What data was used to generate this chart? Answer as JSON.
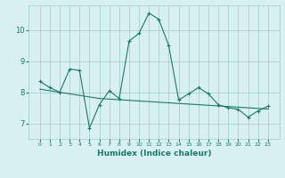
{
  "x": [
    0,
    1,
    2,
    3,
    4,
    5,
    6,
    7,
    8,
    9,
    10,
    11,
    12,
    13,
    14,
    15,
    16,
    17,
    18,
    19,
    20,
    21,
    22,
    23
  ],
  "y_curve": [
    8.35,
    8.15,
    8.0,
    8.75,
    8.7,
    6.85,
    7.6,
    8.05,
    7.8,
    9.65,
    9.9,
    10.55,
    10.35,
    9.5,
    7.75,
    7.95,
    8.15,
    7.95,
    7.6,
    7.5,
    7.45,
    7.2,
    7.4,
    7.55
  ],
  "y_trend": [
    8.1,
    8.05,
    8.0,
    7.95,
    7.9,
    7.85,
    7.8,
    7.78,
    7.76,
    7.74,
    7.72,
    7.7,
    7.68,
    7.66,
    7.64,
    7.62,
    7.6,
    7.58,
    7.56,
    7.54,
    7.52,
    7.5,
    7.48,
    7.46
  ],
  "ylim": [
    6.5,
    10.8
  ],
  "yticks": [
    7,
    8,
    9,
    10
  ],
  "xticks": [
    0,
    1,
    2,
    3,
    4,
    5,
    6,
    7,
    8,
    9,
    10,
    11,
    12,
    13,
    14,
    15,
    16,
    17,
    18,
    19,
    20,
    21,
    22,
    23
  ],
  "line_color": "#1a7a6a",
  "bg_color": "#d8f0f0",
  "grid_color": "#a0c8c8",
  "xlabel": "Humidex (Indice chaleur)"
}
